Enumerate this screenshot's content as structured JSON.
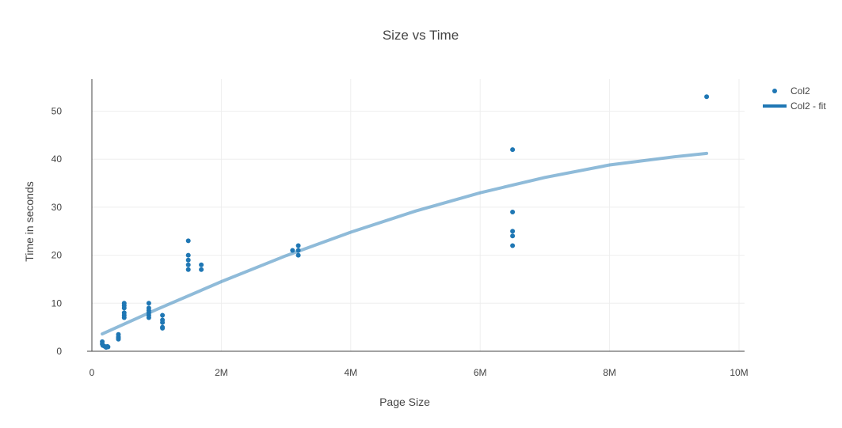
{
  "chart_data": {
    "type": "scatter",
    "title": "Size vs Time",
    "xlabel": "Page Size",
    "ylabel": "Time in seconds",
    "xlim": [
      0,
      10000000
    ],
    "ylim": [
      0,
      55
    ],
    "x_ticks": [
      0,
      2000000,
      4000000,
      6000000,
      8000000,
      10000000
    ],
    "x_tick_labels": [
      "0",
      "2M",
      "4M",
      "6M",
      "8M",
      "10M"
    ],
    "y_ticks": [
      0,
      10,
      20,
      30,
      40,
      50
    ],
    "y_tick_labels": [
      "0",
      "10",
      "20",
      "30",
      "40",
      "50"
    ],
    "grid": true,
    "legend_position": "top-right",
    "series": [
      {
        "name": "Col2",
        "mode": "markers",
        "color": "#1f77b4",
        "points": [
          [
            160000,
            2
          ],
          [
            160000,
            1.5
          ],
          [
            170000,
            1.2
          ],
          [
            200000,
            1
          ],
          [
            220000,
            0.8
          ],
          [
            240000,
            1
          ],
          [
            250000,
            0.9
          ],
          [
            410000,
            3.5
          ],
          [
            410000,
            3
          ],
          [
            410000,
            2.8
          ],
          [
            410000,
            2.5
          ],
          [
            500000,
            10
          ],
          [
            500000,
            9.5
          ],
          [
            500000,
            9
          ],
          [
            500000,
            8
          ],
          [
            500000,
            7.5
          ],
          [
            500000,
            7
          ],
          [
            880000,
            10
          ],
          [
            880000,
            9
          ],
          [
            880000,
            8.5
          ],
          [
            880000,
            8
          ],
          [
            880000,
            7.5
          ],
          [
            880000,
            7
          ],
          [
            1090000,
            7.5
          ],
          [
            1090000,
            6.5
          ],
          [
            1090000,
            6
          ],
          [
            1090000,
            5
          ],
          [
            1090000,
            4.8
          ],
          [
            1490000,
            23
          ],
          [
            1490000,
            20
          ],
          [
            1490000,
            19
          ],
          [
            1490000,
            18
          ],
          [
            1490000,
            17
          ],
          [
            1690000,
            18
          ],
          [
            1690000,
            17
          ],
          [
            3100000,
            21
          ],
          [
            3190000,
            22
          ],
          [
            3190000,
            21
          ],
          [
            3190000,
            20
          ],
          [
            6500000,
            42
          ],
          [
            6500000,
            29
          ],
          [
            6500000,
            25
          ],
          [
            6500000,
            24
          ],
          [
            6500000,
            22
          ],
          [
            9500000,
            53
          ]
        ]
      },
      {
        "name": "Col2 - fit",
        "mode": "lines",
        "color": "#1f77b4",
        "points": [
          [
            160000,
            3.6
          ],
          [
            1000000,
            8.7
          ],
          [
            2000000,
            14.5
          ],
          [
            3000000,
            19.9
          ],
          [
            4000000,
            24.8
          ],
          [
            5000000,
            29.2
          ],
          [
            6000000,
            33.0
          ],
          [
            7000000,
            36.2
          ],
          [
            8000000,
            38.8
          ],
          [
            9000000,
            40.5
          ],
          [
            9500000,
            41.2
          ]
        ]
      }
    ]
  }
}
